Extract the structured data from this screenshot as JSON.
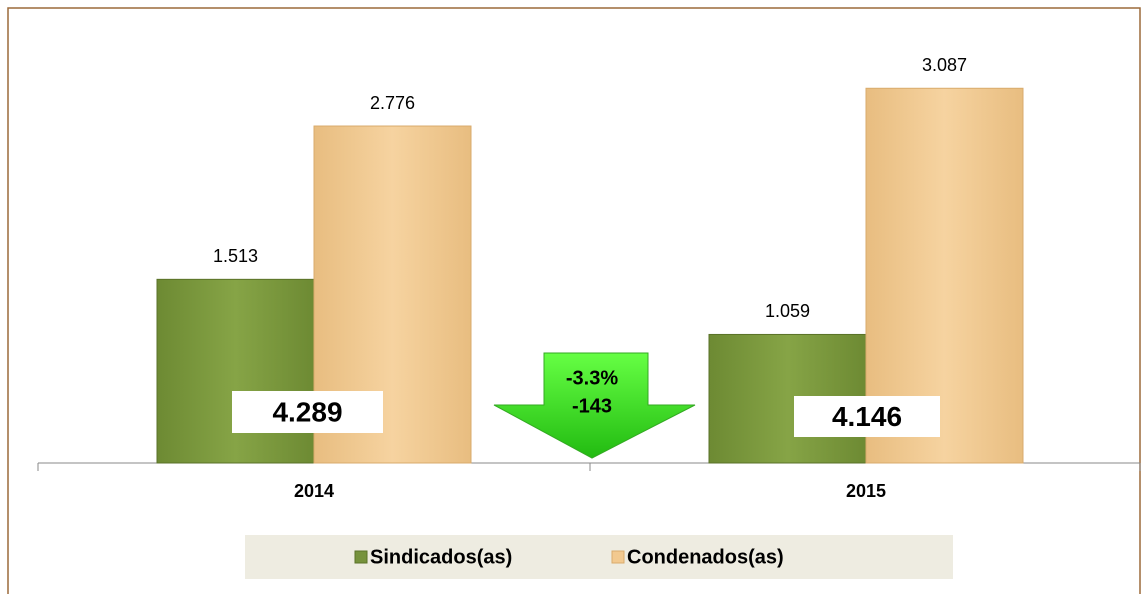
{
  "chart_data": {
    "type": "bar",
    "categories": [
      "2014",
      "2015"
    ],
    "series": [
      {
        "name": "Sindicados(as)",
        "color": "#76923c",
        "values": [
          1513,
          1059
        ],
        "value_labels": [
          "1.513",
          "1.059"
        ]
      },
      {
        "name": "Condenados(as)",
        "color": "#f2c98f",
        "values": [
          2776,
          3087
        ],
        "value_labels": [
          "2.776",
          "3.087"
        ]
      }
    ],
    "ylim": [
      0,
      3600
    ],
    "totals": [
      "4.289",
      "4.146"
    ],
    "change": [
      "-3.3%",
      "-143"
    ],
    "legend": "bottom"
  }
}
